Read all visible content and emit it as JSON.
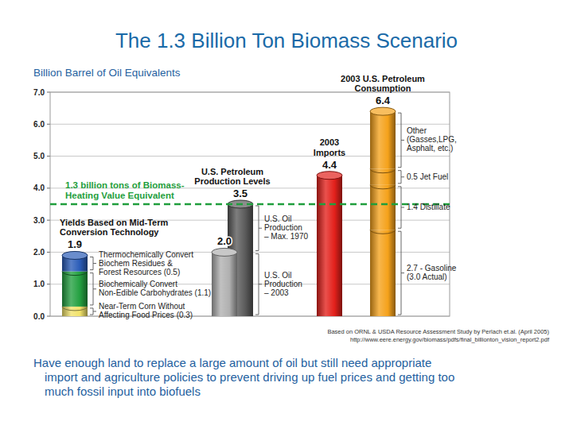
{
  "chart_data": {
    "type": "bar",
    "stacked": true,
    "grid": true,
    "data_labels": true,
    "title": "The 1.3 Billion Ton Biomass Scenario",
    "y_label": "Billion Barrel of Oil Equivalents",
    "ylim": [
      0,
      7
    ],
    "yticks": [
      {
        "value": 0,
        "label": "0.0"
      },
      {
        "value": 1,
        "label": "1.0"
      },
      {
        "value": 2,
        "label": "2.0"
      },
      {
        "value": 3,
        "label": "3.0"
      },
      {
        "value": 4,
        "label": "4.0"
      },
      {
        "value": 5,
        "label": "5.0"
      },
      {
        "value": 6,
        "label": "6.0"
      },
      {
        "value": 7,
        "label": "7.0"
      }
    ],
    "reference_line": {
      "value": 3.5,
      "label": [
        "1.3 billion tons of Biomass-",
        "Heating Value Equivalent"
      ],
      "color": "#1f9e3c"
    },
    "columns": [
      {
        "header": [
          "Yields Based on Mid-Term",
          "Conversion Technology"
        ],
        "bars": [
          {
            "total": 1.9,
            "total_label": "1.9",
            "segments": [
              {
                "name": [
                  "Near-Term Corn Without",
                  "Affecting Food Prices (0.3)"
                ],
                "value": 0.3,
                "color": "#f2e36b"
              },
              {
                "name": [
                  "Biochemically Convert",
                  "Non-Edible Carbohydrates (1.1)"
                ],
                "value": 1.1,
                "color": "#23a040"
              },
              {
                "name": [
                  "Thermochemically Convert",
                  "Biochem Residues &",
                  "Forest Resources (0.5)"
                ],
                "value": 0.5,
                "color": "#2a5cb8"
              }
            ]
          }
        ]
      },
      {
        "header": [
          "U.S. Petroleum",
          "Production Levels"
        ],
        "bars": [
          {
            "total": 3.5,
            "total_label": "3.5",
            "segments": [
              {
                "name": [
                  "U.S. Oil",
                  "Production",
                  "– Max. 1970"
                ],
                "value": 3.5,
                "color": "#5a5a5a"
              }
            ]
          },
          {
            "total": 2.0,
            "total_label": "2.0",
            "segments": [
              {
                "name": [
                  "U.S. Oil",
                  "Production",
                  "– 2003"
                ],
                "value": 2.0,
                "color": "#b0b0b0"
              }
            ]
          }
        ]
      },
      {
        "header": [
          "2003",
          "Imports"
        ],
        "bars": [
          {
            "total": 4.4,
            "total_label": "4.4",
            "segments": [
              {
                "value": 4.4,
                "color": "#e3201b"
              }
            ]
          }
        ]
      },
      {
        "header": [
          "2003 U.S. Petroleum",
          "Consumption"
        ],
        "bars": [
          {
            "total": 6.4,
            "total_label": "6.4",
            "segments": [
              {
                "name": [
                  "2.7 - Gasoline",
                  "(3.0 Actual)"
                ],
                "value": 2.7,
                "color": "#f5a21b"
              },
              {
                "name": [
                  "1.4 Distillate"
                ],
                "value": 1.4,
                "color": "#f5a21b"
              },
              {
                "name": [
                  "0.5 Jet Fuel"
                ],
                "value": 0.5,
                "color": "#f5a21b"
              },
              {
                "name": [
                  "Other",
                  "(Gasses,LPG,",
                  "Asphalt, etc.)"
                ],
                "value": 1.8,
                "color": "#f5a21b"
              }
            ]
          }
        ]
      }
    ],
    "source": [
      "Based on ORNL & USDA Resource Assessment Study by Perlach et.al. (April 2005)",
      "http://www.eere.energy.gov/biomass/pdfs/final_billionton_vision_report2.pdf"
    ],
    "note": [
      "Have enough land to replace a large amount of oil but still need appropriate",
      "import and agriculture policies to prevent driving up fuel prices and getting too",
      "much fossil input into biofuels"
    ]
  }
}
